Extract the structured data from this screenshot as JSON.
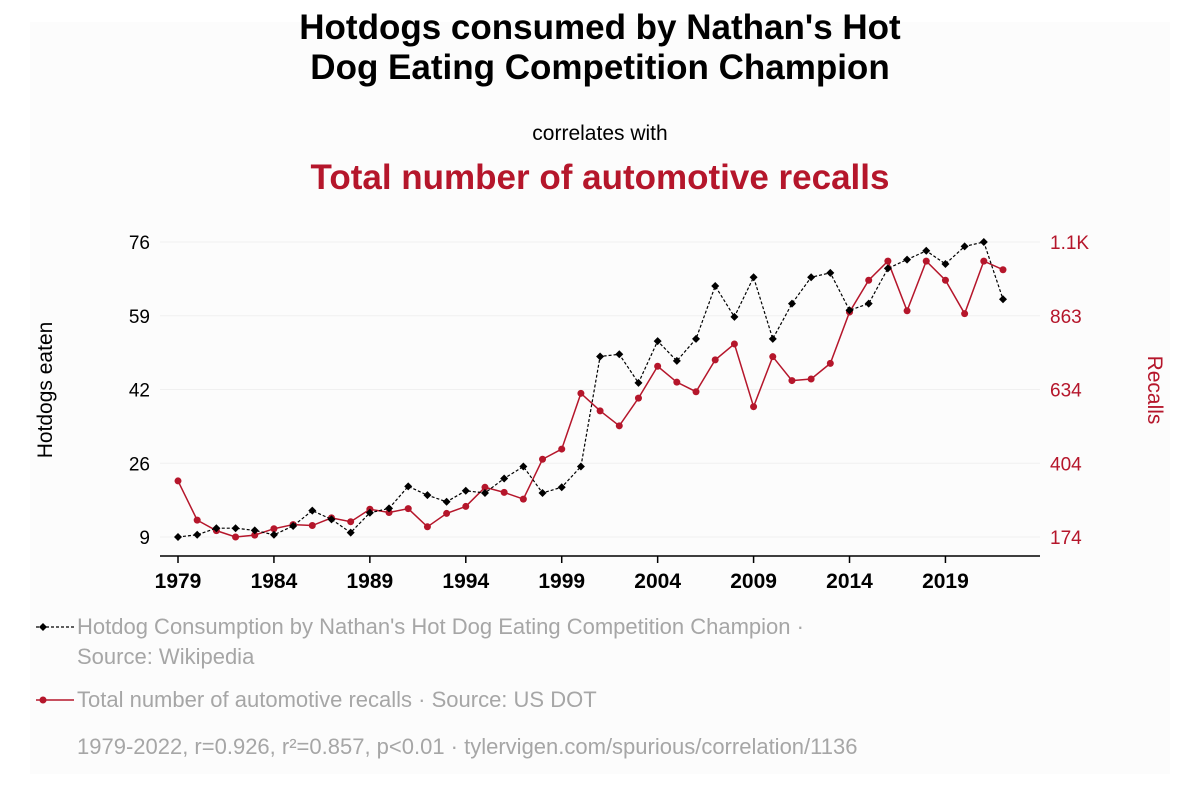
{
  "title_line1": "Hotdogs consumed by Nathan's Hot",
  "title_line2": "Dog Eating Competition Champion",
  "subtitle": "correlates with",
  "title_secondary": "Total number of automotive recalls",
  "legend": {
    "series1_label": "Hotdog Consumption by Nathan's Hot Dog Eating Competition Champion ·",
    "series1_source": "Source: Wikipedia",
    "series2_label": "Total number of automotive recalls · Source: US DOT",
    "footer": "1979-2022, r=0.926, r²=0.857, p<0.01 · tylervigen.com/spurious/correlation/1136"
  },
  "colors": {
    "series1": "#000000",
    "series2": "#b5162b",
    "legend_text": "#a6a6a6"
  },
  "chart_data": {
    "type": "line",
    "x": [
      1979,
      1980,
      1981,
      1982,
      1983,
      1984,
      1985,
      1986,
      1987,
      1988,
      1989,
      1990,
      1991,
      1992,
      1993,
      1994,
      1995,
      1996,
      1997,
      1998,
      1999,
      2000,
      2001,
      2002,
      2003,
      2004,
      2005,
      2006,
      2007,
      2008,
      2009,
      2010,
      2011,
      2012,
      2013,
      2014,
      2015,
      2016,
      2017,
      2018,
      2019,
      2020,
      2021,
      2022
    ],
    "x_ticks": [
      "1979",
      "1984",
      "1989",
      "1994",
      "1999",
      "2004",
      "2009",
      "2014",
      "2019"
    ],
    "y_left": {
      "label": "Hotdogs eaten",
      "ticks": [
        "76",
        "59",
        "42",
        "26",
        "9"
      ],
      "range": [
        9,
        76
      ]
    },
    "y_right": {
      "label": "Recalls",
      "ticks": [
        "1.1K",
        "863",
        "634",
        "404",
        "174"
      ],
      "range": [
        174,
        1100
      ]
    },
    "series": [
      {
        "name": "Hotdog Consumption by Nathan's Hot Dog Eating Competition Champion",
        "axis": "left",
        "marker": "diamond",
        "values": [
          9.0,
          9.5,
          11.0,
          11.0,
          10.5,
          9.5,
          11.5,
          15.0,
          13.0,
          10.0,
          14.5,
          15.5,
          20.5,
          18.5,
          17.0,
          19.5,
          19.0,
          22.3,
          25.0,
          19.0,
          20.3,
          25.0,
          50.0,
          50.5,
          44.0,
          53.5,
          49.0,
          54.0,
          66.0,
          59.0,
          68.0,
          54.0,
          62.0,
          68.0,
          69.0,
          60.5,
          62.0,
          70.0,
          72.0,
          74.0,
          71.0,
          75.0,
          76.0,
          63.0
        ]
      },
      {
        "name": "Total number of automotive recalls",
        "axis": "right",
        "marker": "circle",
        "values": [
          350,
          227,
          194,
          174,
          180,
          200,
          213,
          210,
          234,
          222,
          261,
          251,
          263,
          206,
          248,
          270,
          330,
          314,
          293,
          418,
          450,
          625,
          570,
          523,
          610,
          710,
          660,
          630,
          730,
          780,
          583,
          740,
          665,
          670,
          719,
          880,
          980,
          1040,
          884,
          1040,
          980,
          875,
          1040,
          1013
        ]
      }
    ]
  }
}
